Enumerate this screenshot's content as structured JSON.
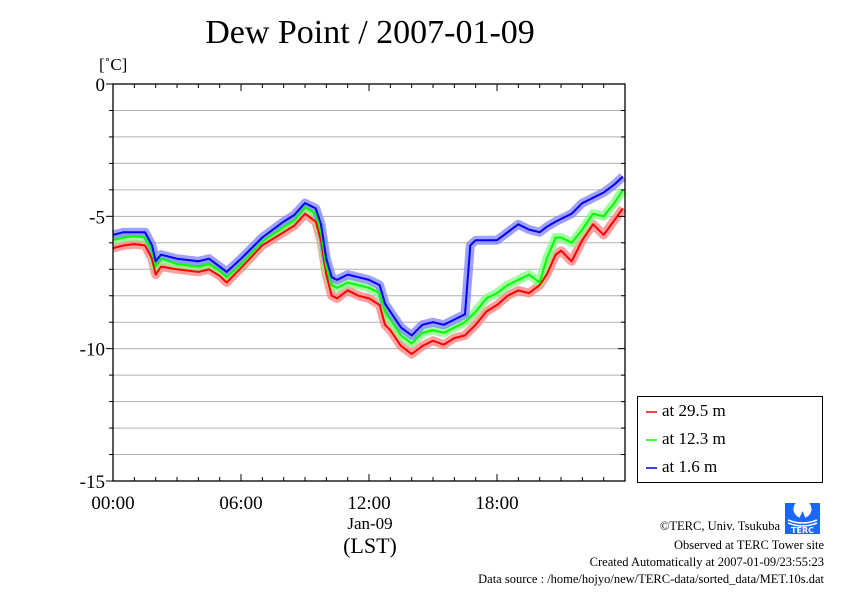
{
  "chart_data": {
    "type": "line",
    "title": "Dew Point / 2007-01-09",
    "ylabel": "[˚C]",
    "xlabel": "(LST)",
    "x_center_label": "Jan-09",
    "ylim": [
      -15,
      0
    ],
    "xlim": [
      0,
      24
    ],
    "yticks": [
      0,
      -5,
      -10,
      -15
    ],
    "ytick_labels": [
      "0",
      "-5",
      "-10",
      "-15"
    ],
    "xticks": [
      0,
      6,
      12,
      18
    ],
    "xtick_labels": [
      "00:00",
      "06:00",
      "12:00",
      "18:00"
    ],
    "grid": true,
    "legend_position": "bottom-right-outside",
    "x": [
      0,
      0.5,
      1,
      1.5,
      1.83,
      2,
      2.25,
      3,
      4,
      4.5,
      5,
      5.33,
      6,
      7,
      8,
      8.5,
      9,
      9.5,
      9.75,
      10,
      10.25,
      10.5,
      11,
      11.5,
      12,
      12.5,
      12.75,
      13,
      13.5,
      14,
      14.5,
      15,
      15.5,
      16,
      16.5,
      16.75,
      17,
      17.5,
      18,
      18.5,
      19,
      19.5,
      20,
      20.33,
      20.75,
      21,
      21.5,
      22,
      22.5,
      23,
      23.5,
      23.9
    ],
    "series": [
      {
        "name": "at 29.5 m",
        "color": "#ff0000",
        "band": "#ff8080",
        "values": [
          -6.2,
          -6.1,
          -6.05,
          -6.1,
          -6.6,
          -7.2,
          -6.9,
          -7.0,
          -7.1,
          -7.0,
          -7.25,
          -7.5,
          -6.95,
          -6.1,
          -5.6,
          -5.35,
          -4.9,
          -5.2,
          -5.9,
          -7.2,
          -8.0,
          -8.1,
          -7.8,
          -8.0,
          -8.1,
          -8.35,
          -9.1,
          -9.3,
          -9.9,
          -10.2,
          -9.9,
          -9.7,
          -9.85,
          -9.6,
          -9.5,
          -9.3,
          -9.1,
          -8.6,
          -8.35,
          -8.0,
          -7.8,
          -7.9,
          -7.6,
          -7.2,
          -6.45,
          -6.3,
          -6.7,
          -5.9,
          -5.3,
          -5.7,
          -5.15,
          -4.7
        ]
      },
      {
        "name": "at 12.3 m",
        "color": "#00ff00",
        "band": "#80ff80",
        "values": [
          -5.9,
          -5.8,
          -5.75,
          -5.8,
          -6.3,
          -6.9,
          -6.6,
          -6.8,
          -6.9,
          -6.8,
          -7.05,
          -7.3,
          -6.8,
          -5.95,
          -5.4,
          -5.15,
          -4.65,
          -4.9,
          -5.6,
          -6.9,
          -7.6,
          -7.7,
          -7.5,
          -7.6,
          -7.7,
          -7.9,
          -8.6,
          -8.9,
          -9.5,
          -9.8,
          -9.4,
          -9.3,
          -9.4,
          -9.2,
          -9.0,
          -8.8,
          -8.6,
          -8.1,
          -7.9,
          -7.6,
          -7.4,
          -7.2,
          -7.5,
          -6.6,
          -5.8,
          -5.8,
          -6.0,
          -5.5,
          -4.9,
          -5.0,
          -4.5,
          -4.0
        ]
      },
      {
        "name": "at 1.6 m",
        "color": "#0000ff",
        "band": "#8080ff",
        "values": [
          -5.7,
          -5.6,
          -5.6,
          -5.6,
          -6.1,
          -6.7,
          -6.45,
          -6.6,
          -6.7,
          -6.6,
          -6.9,
          -7.1,
          -6.6,
          -5.8,
          -5.2,
          -4.95,
          -4.5,
          -4.7,
          -5.3,
          -6.6,
          -7.3,
          -7.4,
          -7.2,
          -7.3,
          -7.4,
          -7.6,
          -8.3,
          -8.6,
          -9.2,
          -9.5,
          -9.1,
          -9.0,
          -9.1,
          -8.9,
          -8.7,
          -6.1,
          -5.9,
          -5.9,
          -5.9,
          -5.6,
          -5.3,
          -5.5,
          -5.6,
          -5.4,
          -5.2,
          -5.1,
          -4.9,
          -4.5,
          -4.3,
          -4.1,
          -3.8,
          -3.5
        ]
      }
    ]
  },
  "credits": {
    "copyright": "©TERC, Univ. Tsukuba",
    "observed": "Observed at TERC Tower site",
    "created": "Created Automatically at 2007-01-09/23:55:23",
    "source": "Data source : /home/hojyo/new/TERC-data/sorted_data/MET.10s.dat",
    "logo_text": "TERC"
  }
}
